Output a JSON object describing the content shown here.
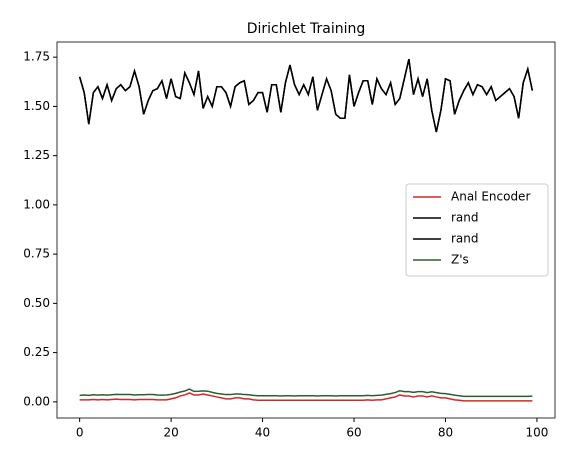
{
  "chart_data": {
    "type": "line",
    "title": "Dirichlet Training",
    "x": [
      0,
      1,
      2,
      3,
      4,
      5,
      6,
      7,
      8,
      9,
      10,
      11,
      12,
      13,
      14,
      15,
      16,
      17,
      18,
      19,
      20,
      21,
      22,
      23,
      24,
      25,
      26,
      27,
      28,
      29,
      30,
      31,
      32,
      33,
      34,
      35,
      36,
      37,
      38,
      39,
      40,
      41,
      42,
      43,
      44,
      45,
      46,
      47,
      48,
      49,
      50,
      51,
      52,
      53,
      54,
      55,
      56,
      57,
      58,
      59,
      60,
      61,
      62,
      63,
      64,
      65,
      66,
      67,
      68,
      69,
      70,
      71,
      72,
      73,
      74,
      75,
      76,
      77,
      78,
      79,
      80,
      81,
      82,
      83,
      84,
      85,
      86,
      87,
      88,
      89,
      90,
      91,
      92,
      93,
      94,
      95,
      96,
      97,
      98,
      99
    ],
    "series": [
      {
        "name": "Anal Encoder",
        "color": "#d62728",
        "values": [
          0.01,
          0.01,
          0.01,
          0.012,
          0.01,
          0.012,
          0.01,
          0.012,
          0.014,
          0.012,
          0.012,
          0.012,
          0.01,
          0.012,
          0.012,
          0.012,
          0.012,
          0.01,
          0.01,
          0.01,
          0.015,
          0.02,
          0.03,
          0.035,
          0.045,
          0.035,
          0.035,
          0.04,
          0.035,
          0.03,
          0.025,
          0.02,
          0.015,
          0.015,
          0.02,
          0.02,
          0.015,
          0.015,
          0.01,
          0.008,
          0.008,
          0.008,
          0.008,
          0.008,
          0.008,
          0.008,
          0.008,
          0.008,
          0.008,
          0.008,
          0.008,
          0.008,
          0.008,
          0.008,
          0.008,
          0.008,
          0.008,
          0.008,
          0.008,
          0.008,
          0.008,
          0.008,
          0.008,
          0.01,
          0.008,
          0.01,
          0.01,
          0.015,
          0.02,
          0.025,
          0.035,
          0.03,
          0.03,
          0.025,
          0.03,
          0.03,
          0.025,
          0.03,
          0.025,
          0.02,
          0.02,
          0.015,
          0.01,
          0.008,
          0.005,
          0.005,
          0.005,
          0.005,
          0.005,
          0.005,
          0.005,
          0.005,
          0.005,
          0.005,
          0.005,
          0.005,
          0.005,
          0.005,
          0.005,
          0.005
        ]
      },
      {
        "name": "rand",
        "color": "#000000",
        "values": [
          1.65,
          1.57,
          1.41,
          1.57,
          1.6,
          1.54,
          1.61,
          1.53,
          1.59,
          1.61,
          1.58,
          1.6,
          1.68,
          1.6,
          1.46,
          1.53,
          1.58,
          1.59,
          1.63,
          1.54,
          1.64,
          1.55,
          1.54,
          1.67,
          1.62,
          1.56,
          1.68,
          1.49,
          1.55,
          1.5,
          1.6,
          1.6,
          1.57,
          1.5,
          1.6,
          1.62,
          1.63,
          1.51,
          1.53,
          1.57,
          1.57,
          1.47,
          1.61,
          1.61,
          1.47,
          1.62,
          1.71,
          1.61,
          1.56,
          1.61,
          1.56,
          1.65,
          1.48,
          1.56,
          1.64,
          1.58,
          1.46,
          1.44,
          1.44,
          1.66,
          1.5,
          1.57,
          1.63,
          1.63,
          1.51,
          1.64,
          1.59,
          1.56,
          1.62,
          1.51,
          1.54,
          1.64,
          1.74,
          1.56,
          1.64,
          1.55,
          1.64,
          1.48,
          1.37,
          1.48,
          1.64,
          1.63,
          1.46,
          1.53,
          1.58,
          1.62,
          1.56,
          1.61,
          1.6,
          1.56,
          1.6,
          1.53,
          1.55,
          1.57,
          1.59,
          1.55,
          1.44,
          1.62,
          1.69,
          1.58
        ]
      },
      {
        "name": "rand",
        "color": "#000000",
        "values": [
          1.65,
          1.57,
          1.41,
          1.57,
          1.6,
          1.54,
          1.61,
          1.53,
          1.59,
          1.61,
          1.58,
          1.6,
          1.68,
          1.6,
          1.46,
          1.53,
          1.58,
          1.59,
          1.63,
          1.54,
          1.64,
          1.55,
          1.54,
          1.67,
          1.62,
          1.56,
          1.68,
          1.49,
          1.55,
          1.5,
          1.6,
          1.6,
          1.57,
          1.5,
          1.6,
          1.62,
          1.63,
          1.51,
          1.53,
          1.57,
          1.57,
          1.47,
          1.61,
          1.61,
          1.47,
          1.62,
          1.71,
          1.61,
          1.56,
          1.61,
          1.56,
          1.65,
          1.48,
          1.56,
          1.64,
          1.58,
          1.46,
          1.44,
          1.44,
          1.66,
          1.5,
          1.57,
          1.63,
          1.63,
          1.51,
          1.64,
          1.59,
          1.56,
          1.62,
          1.51,
          1.54,
          1.64,
          1.74,
          1.56,
          1.64,
          1.55,
          1.64,
          1.48,
          1.37,
          1.48,
          1.64,
          1.63,
          1.46,
          1.53,
          1.58,
          1.62,
          1.56,
          1.61,
          1.6,
          1.56,
          1.6,
          1.53,
          1.55,
          1.57,
          1.59,
          1.55,
          1.44,
          1.62,
          1.69,
          1.58
        ]
      },
      {
        "name": "Z's",
        "color": "#2e5e2e",
        "values": [
          0.033,
          0.035,
          0.033,
          0.036,
          0.034,
          0.036,
          0.034,
          0.036,
          0.038,
          0.037,
          0.037,
          0.037,
          0.035,
          0.036,
          0.036,
          0.037,
          0.037,
          0.035,
          0.034,
          0.035,
          0.038,
          0.043,
          0.05,
          0.055,
          0.065,
          0.053,
          0.054,
          0.056,
          0.054,
          0.048,
          0.043,
          0.04,
          0.037,
          0.037,
          0.04,
          0.04,
          0.037,
          0.036,
          0.033,
          0.031,
          0.031,
          0.031,
          0.031,
          0.031,
          0.03,
          0.031,
          0.031,
          0.03,
          0.031,
          0.031,
          0.031,
          0.031,
          0.03,
          0.031,
          0.031,
          0.031,
          0.03,
          0.031,
          0.031,
          0.031,
          0.031,
          0.031,
          0.031,
          0.033,
          0.031,
          0.033,
          0.034,
          0.038,
          0.042,
          0.047,
          0.056,
          0.052,
          0.052,
          0.048,
          0.052,
          0.052,
          0.047,
          0.051,
          0.047,
          0.043,
          0.042,
          0.038,
          0.034,
          0.031,
          0.028,
          0.028,
          0.028,
          0.028,
          0.028,
          0.028,
          0.028,
          0.028,
          0.028,
          0.028,
          0.028,
          0.028,
          0.028,
          0.028,
          0.028,
          0.029
        ]
      }
    ],
    "xlim": [
      -4.95,
      103.95
    ],
    "xticks": [
      0,
      20,
      40,
      60,
      80,
      100
    ],
    "ylim": [
      -0.082,
      1.827
    ],
    "yticks": [
      {
        "value": 0,
        "label": "0.00"
      },
      {
        "value": 0.25,
        "label": "0.25"
      },
      {
        "value": 0.5,
        "label": "0.50"
      },
      {
        "value": 0.75,
        "label": "0.75"
      },
      {
        "value": 1,
        "label": "1.00"
      },
      {
        "value": 1.25,
        "label": "1.25"
      },
      {
        "value": 1.5,
        "label": "1.50"
      },
      {
        "value": 1.75,
        "label": "1.75"
      }
    ],
    "legend": "center right"
  }
}
